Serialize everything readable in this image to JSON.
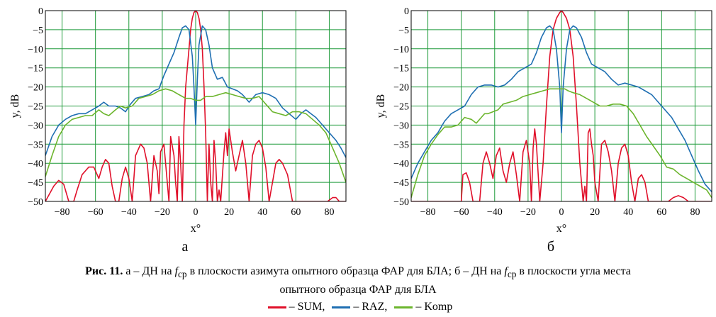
{
  "chart_data": [
    {
      "type": "line",
      "panel_label": "а",
      "xlabel": "x°",
      "ylabel": "y, dB",
      "xlim": [
        -90,
        90
      ],
      "ylim": [
        -50,
        0
      ],
      "xticks": [
        -80,
        -60,
        -40,
        -20,
        0,
        20,
        40,
        60,
        80
      ],
      "yticks": [
        0,
        -5,
        -10,
        -15,
        -20,
        -25,
        -30,
        -35,
        -40,
        -45,
        -50
      ],
      "grid": true,
      "series": [
        {
          "name": "SUM",
          "color": "#e0102a",
          "x": [
            -90,
            -85,
            -82,
            -79,
            -76,
            -73,
            -71,
            -68,
            -64,
            -61,
            -58,
            -56,
            -54,
            -52,
            -50,
            -48,
            -46,
            -44,
            -42,
            -40,
            -38,
            -36,
            -33,
            -31,
            -29,
            -27,
            -25,
            -23,
            -22,
            -21,
            -19,
            -18,
            -16,
            -15,
            -13,
            -12,
            -11,
            -10,
            -9,
            -8,
            -7,
            -6,
            -4,
            -3,
            -2,
            -1,
            0,
            1,
            2,
            3,
            4,
            5,
            6,
            7,
            8,
            9,
            10,
            11,
            12,
            13,
            14,
            15,
            17,
            18,
            19,
            20,
            22,
            24,
            26,
            28,
            30,
            32,
            34,
            36,
            38,
            40,
            42,
            44,
            46,
            48,
            50,
            52,
            55,
            58,
            61,
            64,
            67,
            70,
            73,
            76,
            79,
            82,
            84,
            86,
            88,
            90
          ],
          "y": [
            -50,
            -46,
            -44.5,
            -45.5,
            -50,
            -50,
            -47,
            -43,
            -41,
            -41,
            -44,
            -41,
            -39,
            -40,
            -46,
            -50,
            -50,
            -44,
            -41,
            -44,
            -50,
            -38,
            -35,
            -36,
            -40,
            -50,
            -38,
            -42,
            -48,
            -37,
            -35,
            -40,
            -50,
            -33,
            -38,
            -45,
            -50,
            -33,
            -40,
            -50,
            -30,
            -20,
            -10,
            -5,
            -2,
            -0.5,
            0,
            -0.5,
            -2,
            -5,
            -10,
            -20,
            -32,
            -50,
            -35,
            -45,
            -50,
            -34,
            -40,
            -50,
            -47,
            -50,
            -37,
            -32,
            -38,
            -31,
            -37,
            -42,
            -38,
            -34,
            -40,
            -50,
            -38,
            -35,
            -34,
            -36,
            -41,
            -50,
            -45,
            -40,
            -39,
            -40,
            -43,
            -50,
            -50,
            -50,
            -50,
            -50,
            -50,
            -50,
            -50,
            -49,
            -49,
            -50,
            -50,
            -50
          ]
        },
        {
          "name": "RAZ",
          "color": "#1f6fb2",
          "x": [
            -90,
            -86,
            -82,
            -78,
            -74,
            -70,
            -66,
            -62,
            -58,
            -55,
            -52,
            -48,
            -45,
            -42,
            -39,
            -36,
            -32,
            -28,
            -25,
            -22,
            -19,
            -16,
            -13,
            -10,
            -8,
            -6,
            -4,
            -2,
            -1,
            0,
            1,
            2,
            4,
            6,
            8,
            10,
            13,
            16,
            19,
            22,
            25,
            28,
            32,
            36,
            40,
            44,
            48,
            52,
            56,
            60,
            63,
            66,
            69,
            72,
            76,
            80,
            84,
            87,
            90
          ],
          "y": [
            -38,
            -33,
            -30,
            -28.5,
            -27.5,
            -27,
            -27,
            -26,
            -25,
            -24,
            -25,
            -25,
            -25.5,
            -26.5,
            -24.5,
            -23,
            -22.5,
            -22,
            -21,
            -20.5,
            -17,
            -14,
            -11,
            -7,
            -4.5,
            -4,
            -5,
            -12,
            -20,
            -30,
            -18,
            -9,
            -4,
            -5,
            -9,
            -15,
            -18,
            -17.5,
            -20,
            -20.5,
            -21,
            -22,
            -24,
            -22,
            -21.5,
            -22,
            -23,
            -25.5,
            -27,
            -28.5,
            -27,
            -26,
            -27,
            -28,
            -30,
            -32,
            -34,
            -36,
            -38.5
          ]
        },
        {
          "name": "Komp",
          "color": "#6cb52d",
          "x": [
            -90,
            -86,
            -82,
            -78,
            -74,
            -70,
            -66,
            -62,
            -58,
            -55,
            -52,
            -48,
            -45,
            -42,
            -38,
            -34,
            -30,
            -26,
            -22,
            -18,
            -14,
            -10,
            -6,
            -3,
            0,
            3,
            6,
            10,
            14,
            18,
            22,
            26,
            30,
            34,
            38,
            42,
            46,
            50,
            54,
            58,
            62,
            66,
            70,
            74,
            78,
            82,
            86,
            90
          ],
          "y": [
            -43.5,
            -38,
            -33,
            -30,
            -28.5,
            -28,
            -27.5,
            -27.5,
            -26,
            -27,
            -27.5,
            -26,
            -25,
            -25.5,
            -25,
            -23,
            -22.5,
            -22,
            -21,
            -20.5,
            -21,
            -22,
            -23,
            -23,
            -23.5,
            -23.5,
            -22.5,
            -22.5,
            -22,
            -21.5,
            -22,
            -22.5,
            -23,
            -23,
            -22.5,
            -24.5,
            -26.5,
            -27,
            -27.5,
            -26.5,
            -26.5,
            -27,
            -28.5,
            -30,
            -32,
            -36,
            -40,
            -45
          ]
        }
      ]
    },
    {
      "type": "line",
      "panel_label": "б",
      "xlabel": "x°",
      "ylabel": "y, dB",
      "xlim": [
        -90,
        90
      ],
      "ylim": [
        -50,
        0
      ],
      "xticks": [
        -80,
        -60,
        -40,
        -20,
        0,
        20,
        40,
        60,
        80
      ],
      "yticks": [
        0,
        -5,
        -10,
        -15,
        -20,
        -25,
        -30,
        -35,
        -40,
        -45,
        -50
      ],
      "grid": true,
      "series": [
        {
          "name": "SUM",
          "color": "#e0102a",
          "x": [
            -90,
            -88,
            -85,
            -82,
            -79,
            -76,
            -73,
            -70,
            -67,
            -64,
            -62,
            -60,
            -59,
            -57,
            -55,
            -53,
            -51,
            -49,
            -47,
            -45,
            -43,
            -41,
            -39,
            -37,
            -35,
            -33,
            -31,
            -29,
            -27,
            -25,
            -23,
            -21,
            -19,
            -18,
            -17,
            -16,
            -15,
            -13,
            -11,
            -9,
            -7,
            -5,
            -3,
            -1,
            0,
            1,
            3,
            5,
            7,
            9,
            11,
            13,
            14,
            15,
            16,
            17,
            18,
            19,
            20,
            22,
            24,
            26,
            28,
            30,
            32,
            34,
            36,
            38,
            40,
            42,
            44,
            46,
            48,
            50,
            52,
            55,
            58,
            61,
            64,
            67,
            70,
            73,
            76,
            79,
            82,
            85,
            88,
            90
          ],
          "y": [
            -50,
            -50,
            -50,
            -50,
            -50,
            -50,
            -50,
            -50,
            -50,
            -50,
            -50,
            -50,
            -43,
            -42.5,
            -45,
            -50,
            -50,
            -50,
            -40,
            -37,
            -40,
            -44,
            -38,
            -36,
            -42,
            -45,
            -40,
            -37,
            -43,
            -50,
            -37,
            -34,
            -40,
            -50,
            -36,
            -31,
            -35,
            -50,
            -40,
            -25,
            -12,
            -5,
            -2,
            -0.5,
            0,
            -0.5,
            -2,
            -5,
            -12,
            -25,
            -40,
            -50,
            -46,
            -50,
            -32,
            -31,
            -35,
            -38,
            -45,
            -50,
            -35,
            -34,
            -37,
            -42,
            -50,
            -40,
            -36,
            -35,
            -38,
            -45,
            -50,
            -44,
            -43,
            -45,
            -50,
            -50,
            -50,
            -50,
            -50,
            -49,
            -48.5,
            -49,
            -50,
            -50,
            -50,
            -50,
            -50,
            -50
          ]
        },
        {
          "name": "RAZ",
          "color": "#1f6fb2",
          "x": [
            -90,
            -86,
            -82,
            -78,
            -74,
            -70,
            -66,
            -62,
            -58,
            -54,
            -50,
            -46,
            -42,
            -38,
            -34,
            -30,
            -26,
            -22,
            -18,
            -15,
            -12,
            -9,
            -7,
            -5,
            -3,
            -1,
            0,
            1,
            3,
            5,
            7,
            9,
            12,
            15,
            18,
            22,
            26,
            30,
            34,
            38,
            42,
            46,
            50,
            54,
            58,
            62,
            66,
            70,
            74,
            78,
            82,
            86,
            90
          ],
          "y": [
            -44,
            -40,
            -37,
            -34,
            -32,
            -29,
            -27,
            -26,
            -25,
            -22,
            -20,
            -19.5,
            -19.5,
            -20,
            -19.5,
            -18,
            -16,
            -15,
            -14,
            -11,
            -7,
            -4.5,
            -4,
            -5,
            -10,
            -20,
            -32,
            -20,
            -10,
            -5,
            -4,
            -4.5,
            -7,
            -11,
            -14,
            -15,
            -16,
            -18,
            -19.5,
            -19,
            -19.5,
            -20,
            -21,
            -22,
            -24,
            -26,
            -28,
            -31,
            -34,
            -38,
            -42,
            -45.5,
            -47.5
          ]
        },
        {
          "name": "Komp",
          "color": "#6cb52d",
          "x": [
            -90,
            -86,
            -82,
            -78,
            -74,
            -70,
            -66,
            -62,
            -58,
            -54,
            -51,
            -48,
            -46,
            -44,
            -41,
            -38,
            -35,
            -31,
            -27,
            -23,
            -19,
            -15,
            -11,
            -7,
            -4,
            -2,
            0,
            2,
            4,
            7,
            11,
            15,
            19,
            23,
            27,
            31,
            35,
            39,
            43,
            47,
            51,
            55,
            59,
            63,
            67,
            71,
            75,
            79,
            83,
            87,
            90
          ],
          "y": [
            -49,
            -43,
            -38,
            -35,
            -32.5,
            -30.5,
            -30.5,
            -30,
            -28,
            -28.5,
            -29.5,
            -28,
            -27,
            -27,
            -26.5,
            -26,
            -24.5,
            -24,
            -23.5,
            -22.5,
            -22,
            -21.5,
            -21,
            -20.5,
            -20.5,
            -20.5,
            -20.5,
            -20.5,
            -21,
            -21.5,
            -22,
            -23,
            -24,
            -25,
            -25,
            -24.5,
            -24.5,
            -25,
            -27,
            -30,
            -33,
            -35.5,
            -38,
            -41,
            -41.5,
            -43,
            -44,
            -45,
            -46,
            -47,
            -49
          ]
        }
      ]
    }
  ],
  "caption": {
    "label": "Рис. 11.",
    "text_a_pre": "а – ДН на ",
    "f_symbol": "f",
    "f_sub": "ср",
    "text_a_post": " в плоскости азимута опытного образца ФАР для БЛА; б – ДН на ",
    "text_b_post": " в плоскости угла места",
    "line2": "опытного образца ФАР для БЛА"
  },
  "legend": [
    {
      "label": "– SUM,",
      "color": "#e0102a"
    },
    {
      "label": "– RAZ,",
      "color": "#1f6fb2"
    },
    {
      "label": "– Komp",
      "color": "#6cb52d"
    }
  ]
}
